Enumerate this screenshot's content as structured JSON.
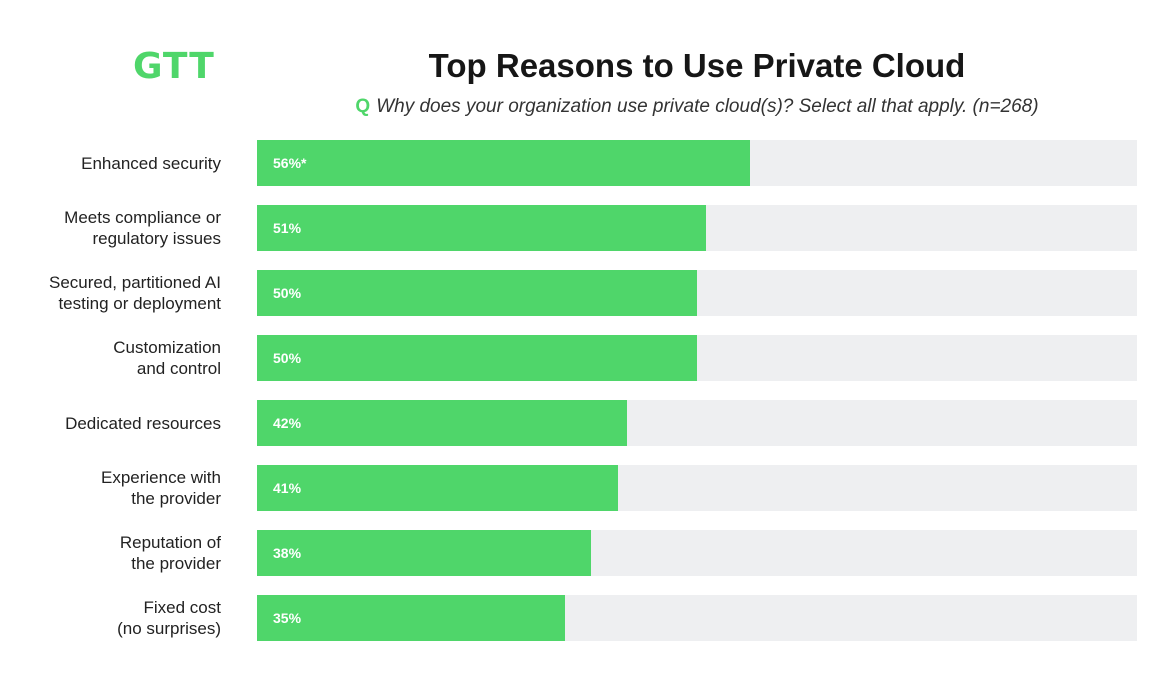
{
  "logo": {
    "text": "GTT"
  },
  "colors": {
    "brand_green": "#4fd66a",
    "track_gray": "#eeeff1",
    "value_text": "#ffffff"
  },
  "header": {
    "title": "Top Reasons to Use Private Cloud",
    "q_mark": "Q",
    "question": "Why does your organization use private cloud(s)? Select all that apply. (n=268)"
  },
  "chart_data": {
    "type": "bar",
    "orientation": "horizontal",
    "title": "Top Reasons to Use Private Cloud",
    "categories": [
      "Enhanced security",
      "Meets compliance or\nregulatory issues",
      "Secured, partitioned AI\ntesting or deployment",
      "Customization\nand control",
      "Dedicated resources",
      "Experience with\nthe provider",
      "Reputation of\nthe provider",
      "Fixed cost\n(no surprises)"
    ],
    "values": [
      56,
      51,
      50,
      50,
      42,
      41,
      38,
      35
    ],
    "value_labels": [
      "56%*",
      "51%",
      "50%",
      "50%",
      "42%",
      "41%",
      "38%",
      "35%"
    ],
    "xlim": [
      0,
      100
    ],
    "grid": false,
    "legend": "none"
  }
}
